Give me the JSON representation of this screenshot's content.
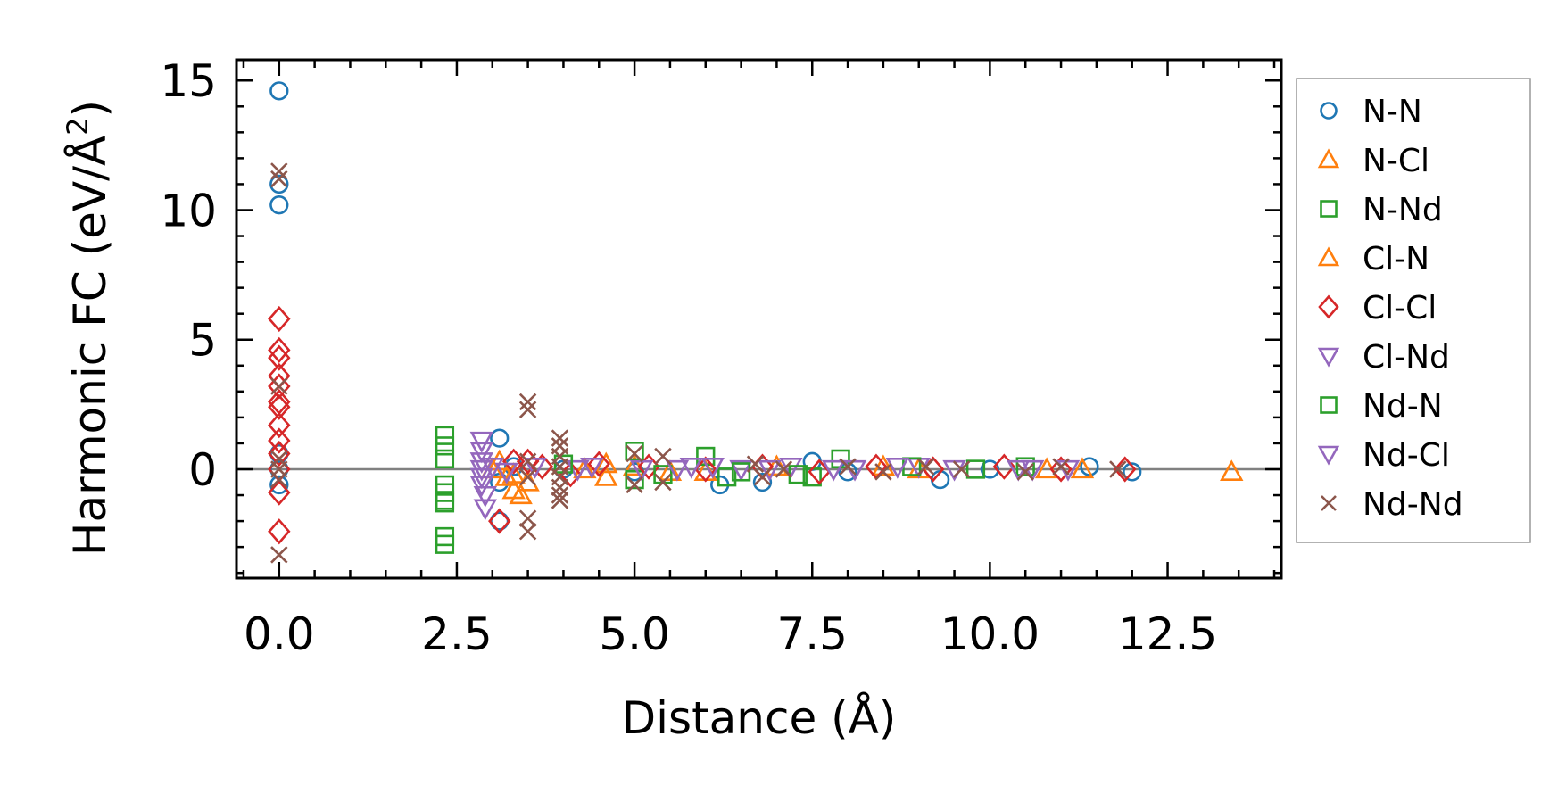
{
  "chart_data": {
    "type": "scatter",
    "xlabel": "Distance (Å)",
    "ylabel": "Harmonic FC (eV/Å²)",
    "ylabel_main": "Harmonic FC (eV/Å",
    "ylabel_sup": "2",
    "ylabel_tail": ")",
    "xlim": [
      -0.6,
      14.1
    ],
    "ylim": [
      -4.2,
      15.8
    ],
    "xticks": [
      0.0,
      2.5,
      5.0,
      7.5,
      10.0,
      12.5
    ],
    "xtick_labels": [
      "0.0",
      "2.5",
      "5.0",
      "7.5",
      "10.0",
      "12.5"
    ],
    "yticks": [
      0,
      5,
      10,
      15
    ],
    "ytick_labels": [
      "0",
      "5",
      "10",
      "15"
    ],
    "zero_line": true,
    "grid": false,
    "legend_position": "right, outside plot",
    "series": [
      {
        "name": "N-N",
        "marker": "circle",
        "color": "#1f77b4",
        "points": [
          [
            0,
            14.6
          ],
          [
            0,
            11.0
          ],
          [
            0,
            10.2
          ],
          [
            0,
            0.6
          ],
          [
            0,
            0.0
          ],
          [
            0,
            -0.6
          ],
          [
            3.1,
            1.2
          ],
          [
            3.1,
            -2.0
          ],
          [
            3.1,
            -0.5
          ],
          [
            3.3,
            0.1
          ],
          [
            4.0,
            0.0
          ],
          [
            5.0,
            -0.1
          ],
          [
            6.2,
            -0.6
          ],
          [
            6.8,
            -0.5
          ],
          [
            7.5,
            0.3
          ],
          [
            8.0,
            -0.1
          ],
          [
            9.3,
            -0.4
          ],
          [
            10.0,
            0.0
          ],
          [
            11.4,
            0.1
          ],
          [
            12.0,
            -0.1
          ]
        ]
      },
      {
        "name": "N-Cl",
        "marker": "triangle-up",
        "color": "#ff7f0e",
        "points": [
          [
            3.0,
            0.0
          ],
          [
            3.2,
            -0.3
          ],
          [
            3.3,
            -0.8
          ],
          [
            3.4,
            -1.0
          ],
          [
            3.5,
            -0.5
          ],
          [
            4.6,
            -0.3
          ],
          [
            5.0,
            0.1
          ],
          [
            6.0,
            -0.1
          ],
          [
            7.0,
            0.1
          ],
          [
            9.0,
            0.0
          ],
          [
            11.3,
            0.0
          ],
          [
            13.4,
            -0.1
          ]
        ]
      },
      {
        "name": "N-Nd",
        "marker": "square",
        "color": "#2ca02c",
        "points": [
          [
            2.33,
            1.3
          ],
          [
            2.33,
            0.9
          ],
          [
            2.33,
            0.4
          ],
          [
            2.33,
            -0.6
          ],
          [
            2.33,
            -0.9
          ],
          [
            2.33,
            -1.2
          ],
          [
            2.33,
            -1.3
          ],
          [
            2.33,
            -2.6
          ],
          [
            2.33,
            -2.9
          ],
          [
            5.0,
            0.7
          ],
          [
            5.0,
            -0.4
          ],
          [
            6.0,
            0.5
          ],
          [
            6.3,
            -0.3
          ],
          [
            7.5,
            -0.3
          ],
          [
            7.9,
            0.4
          ],
          [
            10.5,
            0.1
          ]
        ]
      },
      {
        "name": "Cl-N",
        "marker": "triangle-up",
        "color": "#ff7f0e",
        "points": [
          [
            3.1,
            0.3
          ],
          [
            3.3,
            -0.2
          ],
          [
            4.3,
            0.0
          ],
          [
            4.6,
            0.2
          ],
          [
            5.5,
            -0.1
          ],
          [
            8.5,
            0.1
          ],
          [
            10.8,
            0.0
          ]
        ]
      },
      {
        "name": "Cl-Cl",
        "marker": "diamond",
        "color": "#d62728",
        "points": [
          [
            0,
            5.8
          ],
          [
            0,
            4.6
          ],
          [
            0,
            4.3
          ],
          [
            0,
            3.6
          ],
          [
            0,
            3.2
          ],
          [
            0,
            2.6
          ],
          [
            0,
            2.4
          ],
          [
            0,
            1.7
          ],
          [
            0,
            1.1
          ],
          [
            0,
            0.6
          ],
          [
            0,
            0.0
          ],
          [
            0,
            -0.9
          ],
          [
            0,
            -2.4
          ],
          [
            3.1,
            -2.0
          ],
          [
            3.3,
            0.3
          ],
          [
            3.5,
            0.3
          ],
          [
            3.7,
            0.1
          ],
          [
            4.1,
            -0.2
          ],
          [
            4.5,
            0.2
          ],
          [
            5.2,
            0.1
          ],
          [
            6.0,
            0.0
          ],
          [
            6.8,
            0.1
          ],
          [
            7.6,
            -0.1
          ],
          [
            8.4,
            0.1
          ],
          [
            9.2,
            0.0
          ],
          [
            10.2,
            0.1
          ],
          [
            11.0,
            0.0
          ],
          [
            11.9,
            0.0
          ]
        ]
      },
      {
        "name": "Cl-Nd",
        "marker": "triangle-down",
        "color": "#9467bd",
        "points": [
          [
            2.85,
            1.1
          ],
          [
            2.85,
            0.7
          ],
          [
            2.85,
            0.3
          ],
          [
            2.85,
            0.0
          ],
          [
            2.85,
            -0.3
          ],
          [
            2.85,
            -0.6
          ],
          [
            2.9,
            -1.0
          ],
          [
            2.9,
            -1.5
          ],
          [
            3.6,
            0.1
          ],
          [
            4.2,
            0.0
          ],
          [
            5.1,
            0.0
          ],
          [
            5.8,
            0.1
          ],
          [
            6.5,
            0.0
          ],
          [
            7.2,
            0.1
          ],
          [
            8.1,
            0.0
          ],
          [
            9.0,
            0.1
          ],
          [
            10.4,
            0.0
          ],
          [
            11.1,
            0.0
          ]
        ]
      },
      {
        "name": "Nd-N",
        "marker": "square",
        "color": "#2ca02c",
        "points": [
          [
            4.0,
            0.2
          ],
          [
            5.4,
            -0.2
          ],
          [
            6.5,
            -0.1
          ],
          [
            7.3,
            -0.2
          ],
          [
            8.9,
            0.1
          ],
          [
            9.8,
            0.0
          ]
        ]
      },
      {
        "name": "Nd-Cl",
        "marker": "triangle-down",
        "color": "#9467bd",
        "points": [
          [
            3.0,
            0.1
          ],
          [
            3.2,
            -0.1
          ],
          [
            4.4,
            0.1
          ],
          [
            5.6,
            0.0
          ],
          [
            6.1,
            0.1
          ],
          [
            6.9,
            0.0
          ],
          [
            7.8,
            0.0
          ],
          [
            8.7,
            0.1
          ],
          [
            9.5,
            0.0
          ],
          [
            10.6,
            0.0
          ]
        ]
      },
      {
        "name": "Nd-Nd",
        "marker": "x",
        "color": "#8c564b",
        "points": [
          [
            0,
            11.5
          ],
          [
            0,
            11.2
          ],
          [
            0,
            3.2
          ],
          [
            0,
            0.4
          ],
          [
            0,
            0.0
          ],
          [
            0,
            -0.4
          ],
          [
            0,
            -3.3
          ],
          [
            3.5,
            2.6
          ],
          [
            3.5,
            2.3
          ],
          [
            3.5,
            -1.9
          ],
          [
            3.5,
            -2.4
          ],
          [
            3.5,
            0.3
          ],
          [
            3.5,
            -0.3
          ],
          [
            3.95,
            1.2
          ],
          [
            3.95,
            0.9
          ],
          [
            3.95,
            0.5
          ],
          [
            3.95,
            0.1
          ],
          [
            3.95,
            -0.3
          ],
          [
            3.95,
            -0.7
          ],
          [
            3.95,
            -1.0
          ],
          [
            3.95,
            -1.2
          ],
          [
            5.0,
            0.6
          ],
          [
            5.0,
            -0.6
          ],
          [
            5.4,
            0.5
          ],
          [
            5.4,
            -0.5
          ],
          [
            6.7,
            0.2
          ],
          [
            6.8,
            -0.3
          ],
          [
            7.1,
            0.0
          ],
          [
            8.0,
            0.1
          ],
          [
            8.5,
            -0.1
          ],
          [
            9.1,
            0.1
          ],
          [
            9.6,
            0.0
          ],
          [
            10.5,
            -0.1
          ],
          [
            11.0,
            0.1
          ],
          [
            11.8,
            0.0
          ]
        ]
      }
    ]
  }
}
